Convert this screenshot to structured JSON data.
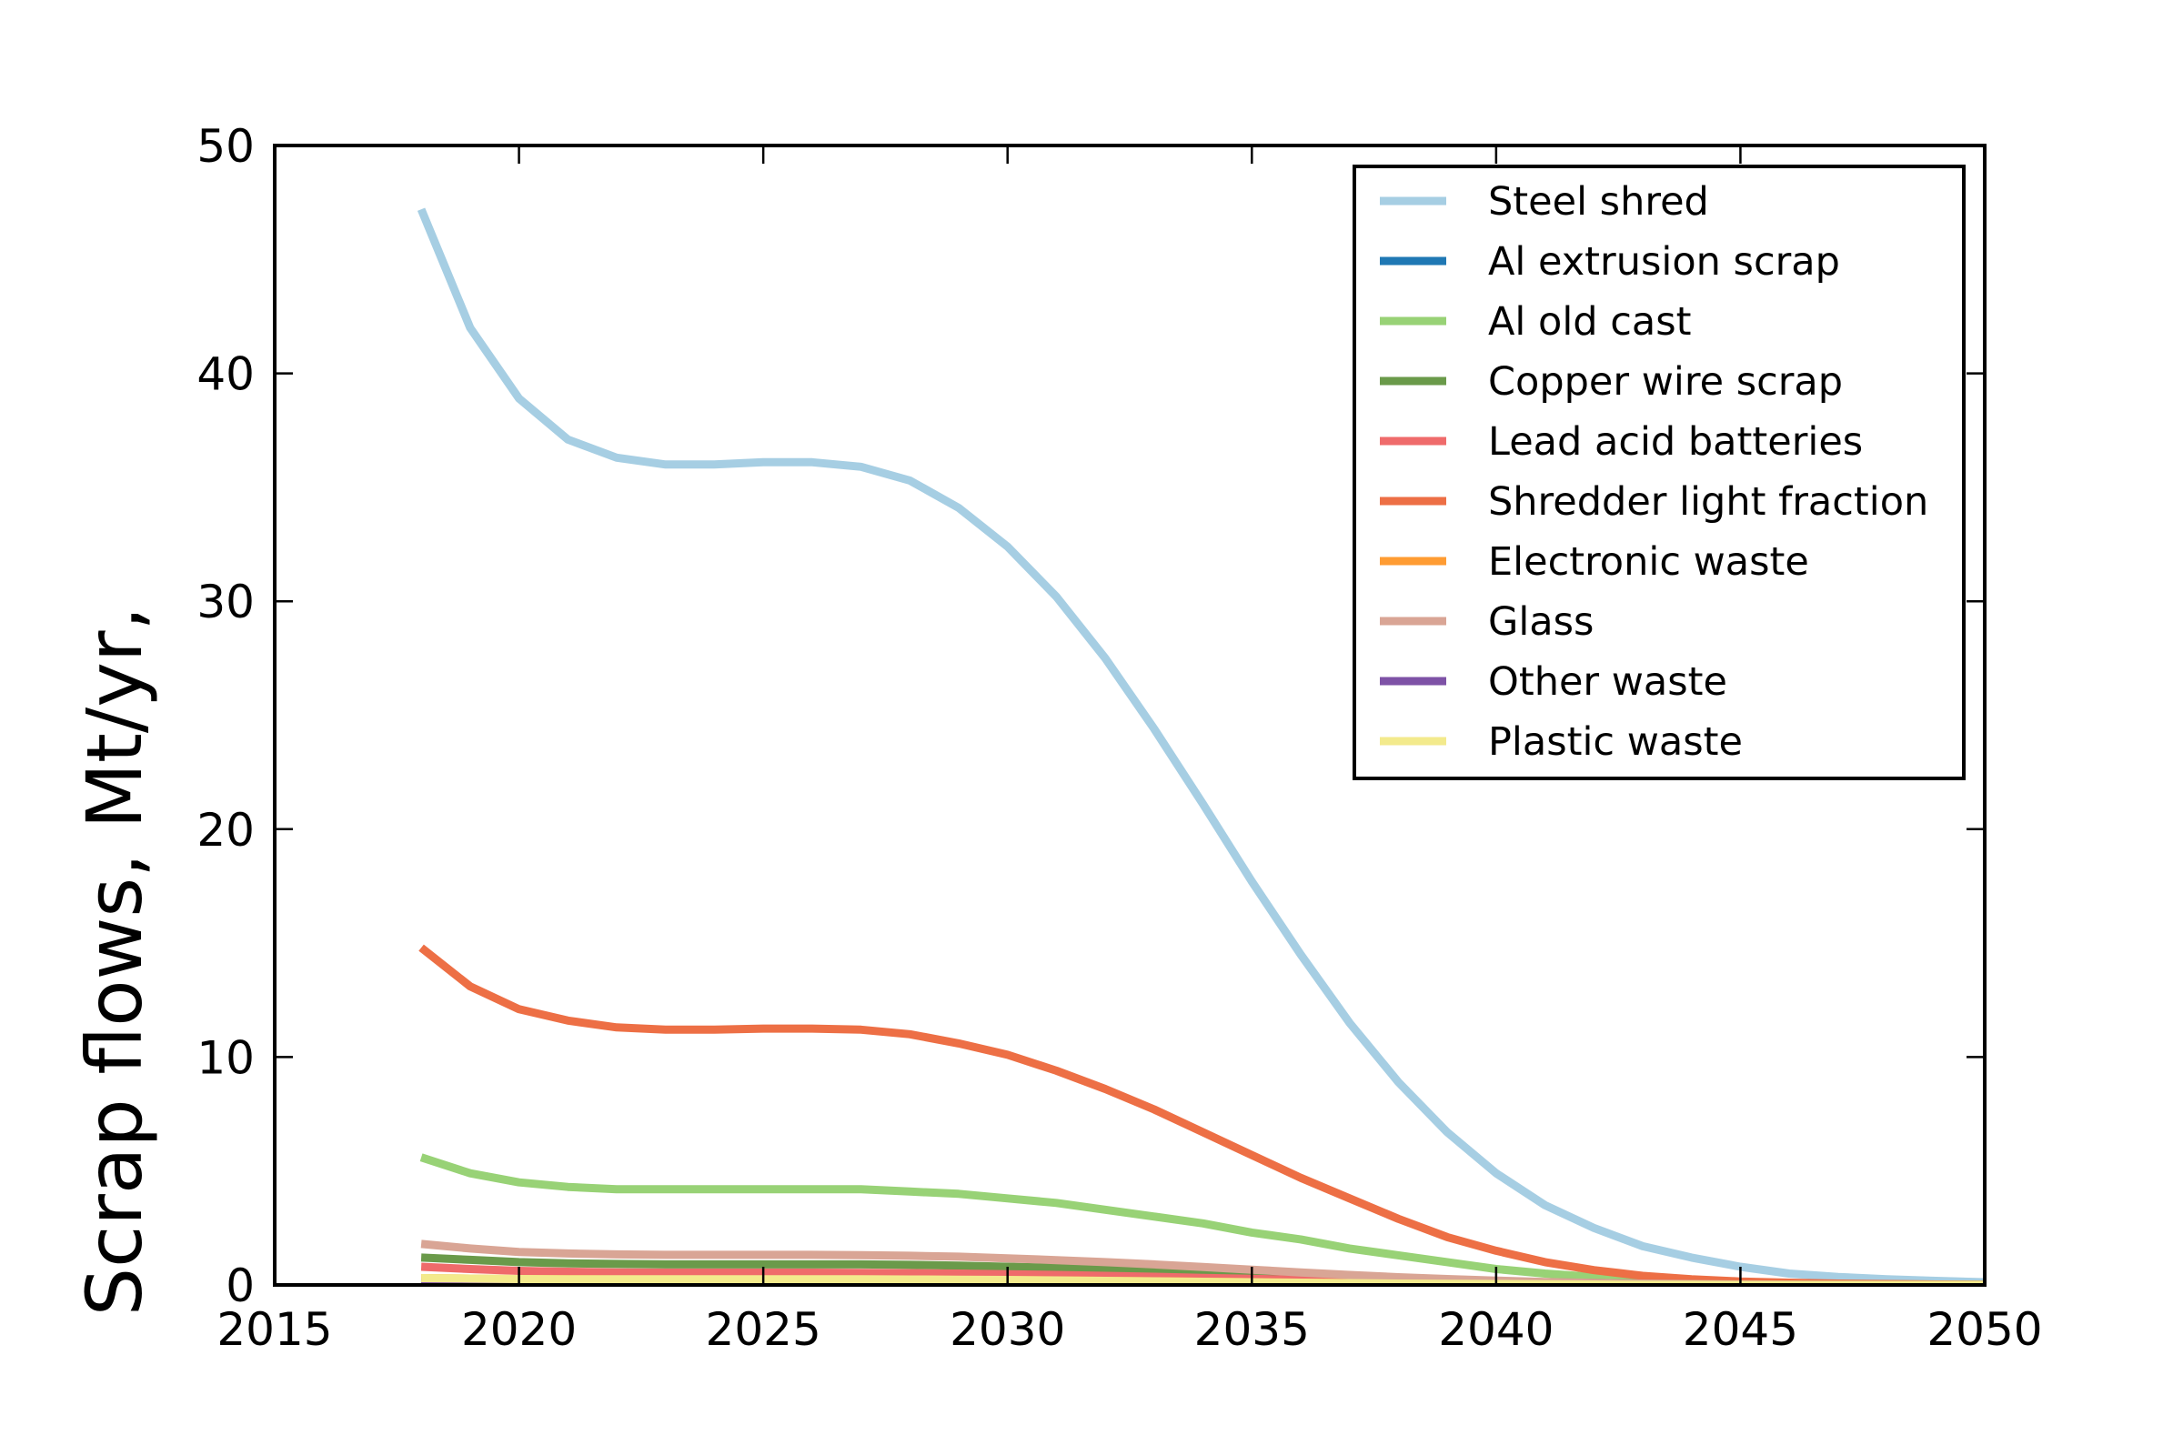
{
  "chart_data": {
    "type": "line",
    "title": "",
    "xlabel": "",
    "ylabel": "Scrap flows, Mt/yr,",
    "xlim": [
      2015,
      2050
    ],
    "ylim": [
      0,
      50
    ],
    "xticks": [
      2015,
      2020,
      2025,
      2030,
      2035,
      2040,
      2045,
      2050
    ],
    "yticks": [
      0,
      10,
      20,
      30,
      40,
      50
    ],
    "grid": false,
    "legend_position": "top-right",
    "x": [
      2018,
      2019,
      2020,
      2021,
      2022,
      2023,
      2024,
      2025,
      2026,
      2027,
      2028,
      2029,
      2030,
      2031,
      2032,
      2033,
      2034,
      2035,
      2036,
      2037,
      2038,
      2039,
      2040,
      2041,
      2042,
      2043,
      2044,
      2045,
      2046,
      2047,
      2048,
      2049,
      2050
    ],
    "series": [
      {
        "name": "Steel shred",
        "color": "#a6cee3",
        "values": [
          47.2,
          42.0,
          38.9,
          37.1,
          36.3,
          36.0,
          36.0,
          36.1,
          36.1,
          35.9,
          35.3,
          34.1,
          32.4,
          30.2,
          27.5,
          24.4,
          21.1,
          17.7,
          14.5,
          11.5,
          8.9,
          6.7,
          4.9,
          3.5,
          2.5,
          1.7,
          1.2,
          0.8,
          0.5,
          0.35,
          0.25,
          0.18,
          0.12
        ]
      },
      {
        "name": "Al extrusion scrap",
        "color": "#1f78b4",
        "values": [
          0.2,
          0.2,
          0.2,
          0.2,
          0.2,
          0.2,
          0.2,
          0.2,
          0.2,
          0.2,
          0.2,
          0.2,
          0.2,
          0.18,
          0.16,
          0.14,
          0.12,
          0.1,
          0.08,
          0.06,
          0.05,
          0.04,
          0.03,
          0.02,
          0.02,
          0.01,
          0.01,
          0.01,
          0.0,
          0.0,
          0.0,
          0.0,
          0.0
        ]
      },
      {
        "name": "Al old cast",
        "color": "#98d276",
        "values": [
          5.6,
          4.9,
          4.5,
          4.3,
          4.2,
          4.2,
          4.2,
          4.2,
          4.2,
          4.2,
          4.1,
          4.0,
          3.8,
          3.6,
          3.3,
          3.0,
          2.7,
          2.3,
          2.0,
          1.6,
          1.3,
          1.0,
          0.7,
          0.5,
          0.35,
          0.25,
          0.17,
          0.12,
          0.08,
          0.05,
          0.03,
          0.02,
          0.01
        ]
      },
      {
        "name": "Copper wire scrap",
        "color": "#6a9a4a",
        "values": [
          1.2,
          1.1,
          1.0,
          0.95,
          0.92,
          0.9,
          0.9,
          0.9,
          0.9,
          0.9,
          0.88,
          0.85,
          0.8,
          0.75,
          0.7,
          0.63,
          0.56,
          0.48,
          0.41,
          0.34,
          0.27,
          0.21,
          0.16,
          0.12,
          0.09,
          0.06,
          0.04,
          0.03,
          0.02,
          0.01,
          0.01,
          0.0,
          0.0
        ]
      },
      {
        "name": "Lead acid batteries",
        "color": "#ef6b6b",
        "values": [
          0.8,
          0.7,
          0.62,
          0.58,
          0.55,
          0.54,
          0.54,
          0.54,
          0.54,
          0.53,
          0.52,
          0.5,
          0.47,
          0.44,
          0.4,
          0.36,
          0.31,
          0.27,
          0.22,
          0.18,
          0.14,
          0.11,
          0.08,
          0.06,
          0.04,
          0.03,
          0.02,
          0.01,
          0.01,
          0.0,
          0.0,
          0.0,
          0.0
        ]
      },
      {
        "name": "Shredder light fraction",
        "color": "#ed6f45",
        "values": [
          14.8,
          13.1,
          12.1,
          11.6,
          11.3,
          11.2,
          11.2,
          11.25,
          11.25,
          11.2,
          11.0,
          10.6,
          10.1,
          9.4,
          8.6,
          7.7,
          6.7,
          5.7,
          4.7,
          3.8,
          2.9,
          2.1,
          1.5,
          1.0,
          0.65,
          0.4,
          0.25,
          0.15,
          0.1,
          0.06,
          0.04,
          0.02,
          0.01
        ]
      },
      {
        "name": "Electronic waste",
        "color": "#ff9c33",
        "values": [
          0.3,
          0.28,
          0.26,
          0.25,
          0.24,
          0.24,
          0.24,
          0.24,
          0.24,
          0.24,
          0.23,
          0.22,
          0.21,
          0.2,
          0.18,
          0.16,
          0.14,
          0.12,
          0.1,
          0.08,
          0.06,
          0.05,
          0.04,
          0.03,
          0.02,
          0.01,
          0.01,
          0.0,
          0.0,
          0.0,
          0.0,
          0.0,
          0.0
        ]
      },
      {
        "name": "Glass",
        "color": "#d9a595",
        "values": [
          1.8,
          1.6,
          1.45,
          1.38,
          1.34,
          1.32,
          1.32,
          1.32,
          1.32,
          1.31,
          1.28,
          1.24,
          1.17,
          1.09,
          1.0,
          0.9,
          0.79,
          0.67,
          0.55,
          0.44,
          0.34,
          0.26,
          0.19,
          0.13,
          0.09,
          0.06,
          0.04,
          0.02,
          0.01,
          0.01,
          0.0,
          0.0,
          0.0
        ]
      },
      {
        "name": "Other waste",
        "color": "#7e52a6",
        "values": [
          0.1,
          0.1,
          0.1,
          0.1,
          0.1,
          0.1,
          0.1,
          0.1,
          0.1,
          0.1,
          0.1,
          0.09,
          0.09,
          0.08,
          0.07,
          0.06,
          0.05,
          0.04,
          0.03,
          0.03,
          0.02,
          0.02,
          0.01,
          0.01,
          0.01,
          0.0,
          0.0,
          0.0,
          0.0,
          0.0,
          0.0,
          0.0,
          0.0
        ]
      },
      {
        "name": "Plastic waste",
        "color": "#f3ea8c",
        "values": [
          0.3,
          0.28,
          0.26,
          0.25,
          0.25,
          0.25,
          0.25,
          0.25,
          0.25,
          0.25,
          0.24,
          0.23,
          0.22,
          0.2,
          0.18,
          0.16,
          0.14,
          0.12,
          0.1,
          0.08,
          0.06,
          0.05,
          0.04,
          0.03,
          0.02,
          0.01,
          0.01,
          0.0,
          0.0,
          0.0,
          0.0,
          0.0,
          0.0
        ]
      }
    ]
  }
}
